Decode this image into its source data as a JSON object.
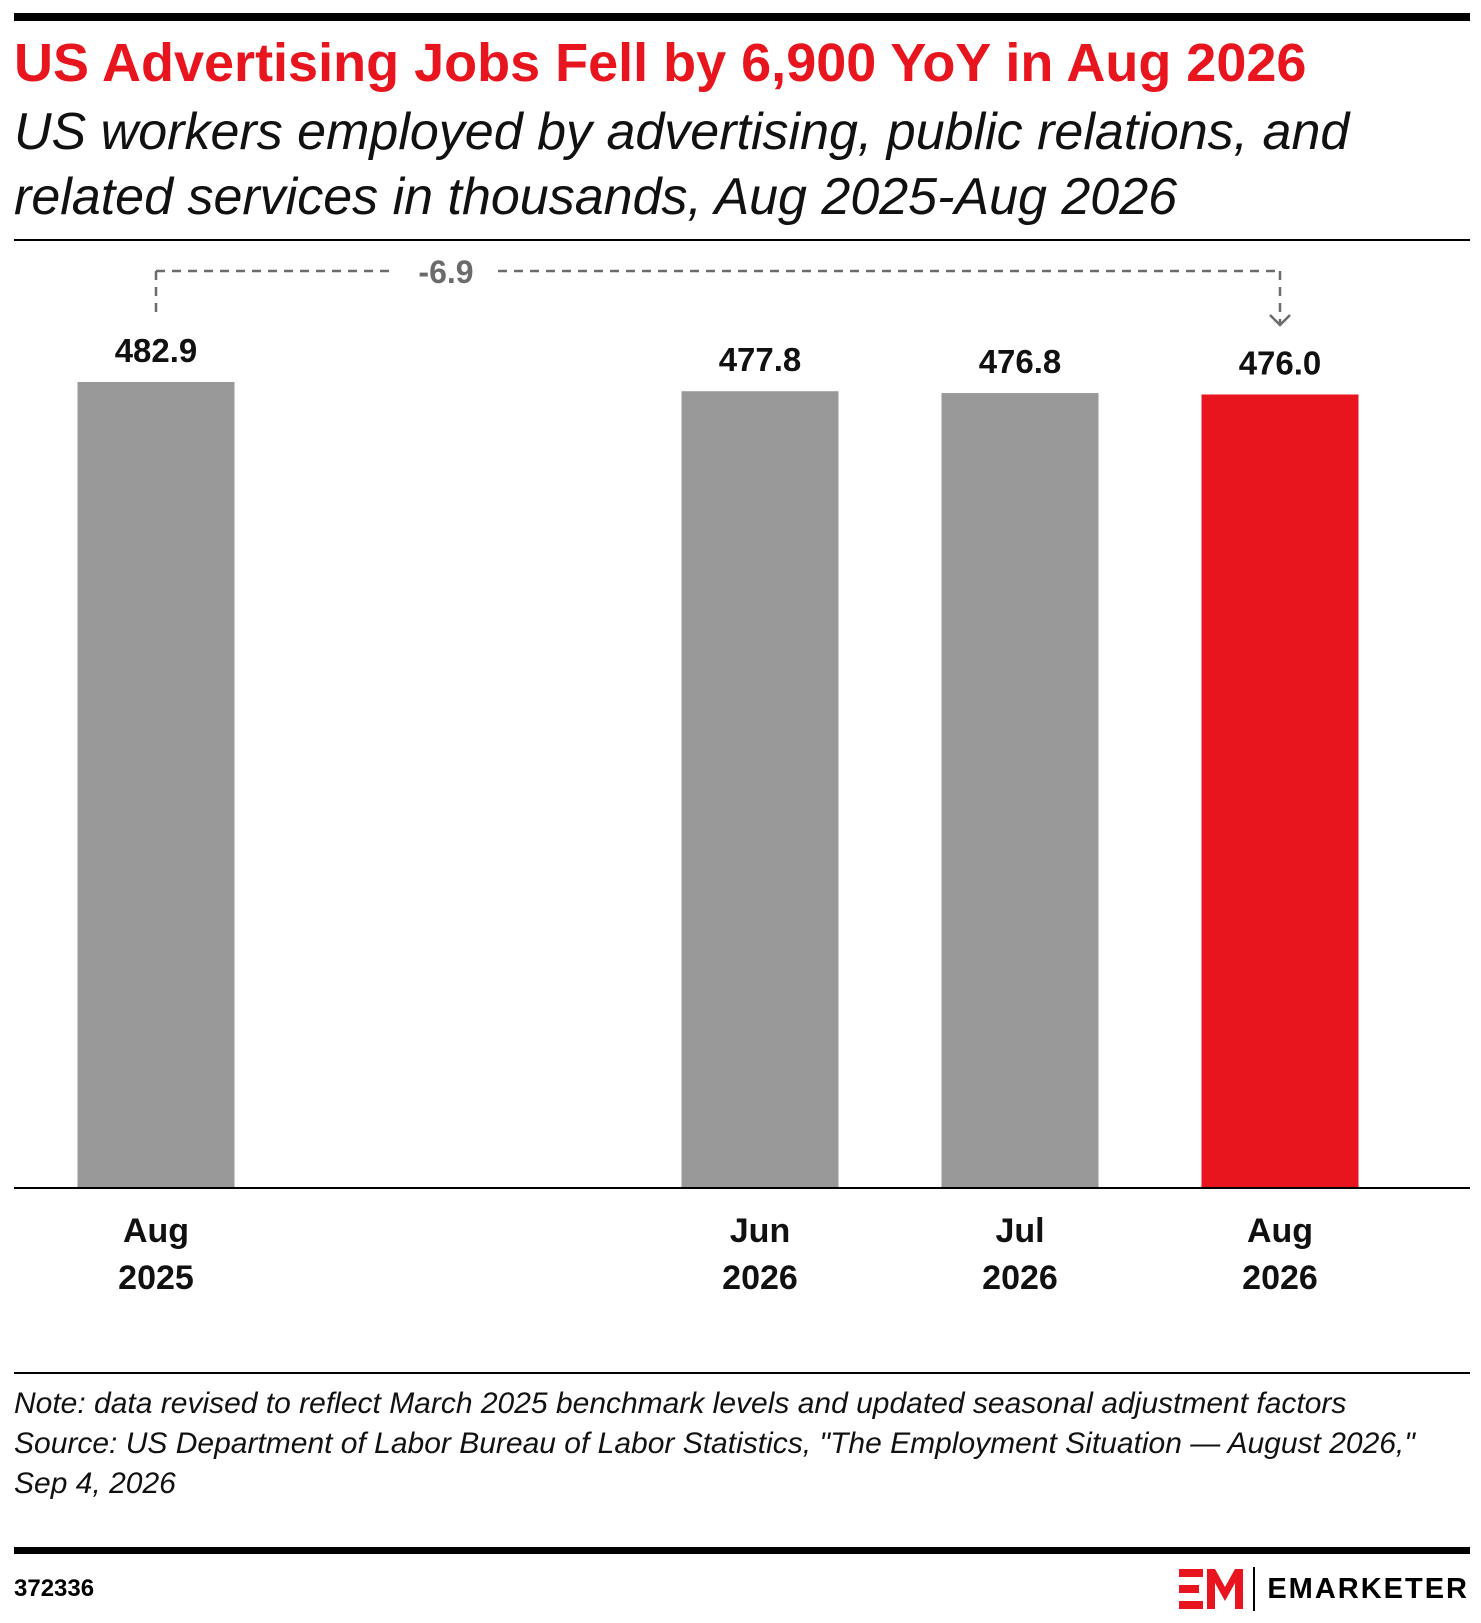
{
  "header": {
    "title": "US Advertising Jobs Fell by 6,900 YoY in Aug 2026",
    "subtitle": "US workers employed by advertising, public relations, and related services in thousands, Aug 2025-Aug 2026"
  },
  "chart_data": {
    "type": "bar",
    "title": "US Advertising Jobs Fell by 6,900 YoY in Aug 2026",
    "subtitle": "US workers employed by advertising, public relations, and related services in thousands, Aug 2025-Aug 2026",
    "categories": [
      [
        "Aug",
        "2025"
      ],
      [
        "Jun",
        "2026"
      ],
      [
        "Jul",
        "2026"
      ],
      [
        "Aug",
        "2026"
      ]
    ],
    "values": [
      482.9,
      477.8,
      476.8,
      476.0
    ],
    "value_labels": [
      "482.9",
      "477.8",
      "476.8",
      "476.0"
    ],
    "colors": [
      "#999999",
      "#999999",
      "#999999",
      "#e8141e"
    ],
    "highlight_index": 3,
    "annotation": {
      "text": "-6.9",
      "from_index": 0,
      "to_index": 3,
      "color": "#6b6b6b"
    },
    "ylim": [
      0,
      482.9
    ],
    "grid": false,
    "legend": "none"
  },
  "footer": {
    "note": "Note: data revised to reflect March 2025 benchmark levels and updated seasonal adjustment factors",
    "source": "Source: US Department of Labor Bureau of Labor Statistics, \"The Employment Situation — August 2026,\" Sep 4, 2026",
    "chart_id": "372336",
    "brand": "EMARKETER",
    "brand_mark": "EM",
    "brand_color": "#e8141e"
  }
}
